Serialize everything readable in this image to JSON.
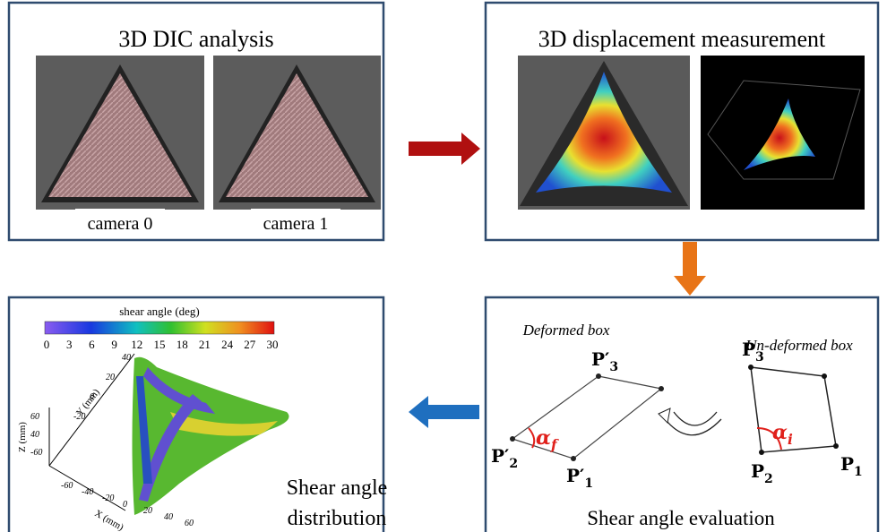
{
  "panels": [
    {
      "title": "3D DIC analysis",
      "captions": [
        "camera 0",
        "camera 1"
      ]
    },
    {
      "title": "3D displacement measurement"
    },
    {
      "title": "Shear angle distribution",
      "colorbar": {
        "title": "shear angle (deg)",
        "ticks": [
          0,
          3,
          6,
          9,
          12,
          15,
          18,
          21,
          24,
          27,
          30
        ]
      },
      "axes": {
        "x_label": "X (mm)",
        "y_label": "Y (mm)",
        "z_label": "Z (mm)",
        "x_ticks": [
          -60,
          -40,
          -20,
          0,
          20,
          40,
          60
        ],
        "y_ticks": [
          40,
          20,
          0,
          -20
        ],
        "z_ticks": [
          60,
          40,
          -60
        ]
      }
    },
    {
      "title": "Shear angle evaluation",
      "deformed_label": "Deformed box",
      "undeformed_label": "Un-deformed box",
      "deformed_points": [
        {
          "main": "P′",
          "sub": "3"
        },
        {
          "main": "P′",
          "sub": "2"
        },
        {
          "main": "P′",
          "sub": "1"
        }
      ],
      "undeformed_points": [
        {
          "main": "P",
          "sub": "3"
        },
        {
          "main": "P",
          "sub": "2"
        },
        {
          "main": "P",
          "sub": "1"
        }
      ],
      "deformed_angle": {
        "main": "α",
        "sub": "f"
      },
      "undeformed_angle": {
        "main": "α",
        "sub": "i"
      }
    }
  ]
}
